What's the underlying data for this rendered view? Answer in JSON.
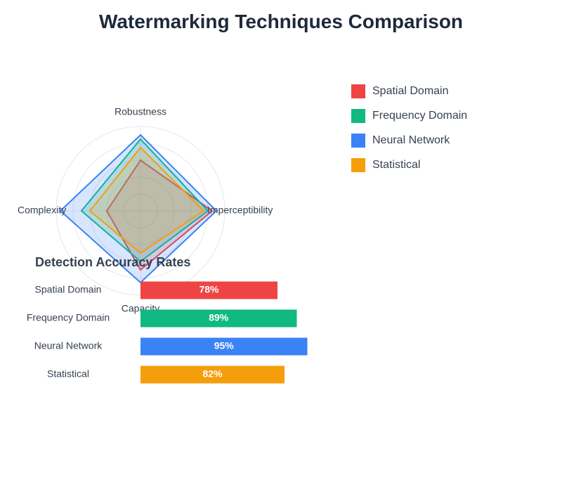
{
  "title": "Watermarking Techniques Comparison",
  "colors": {
    "Spatial Domain": "#ef4444",
    "Frequency Domain": "#10b981",
    "Neural Network": "#3b82f6",
    "Statistical": "#f59e0b"
  },
  "chart_data": [
    {
      "type": "radar",
      "axes": [
        "Robustness",
        "Imperceptibility",
        "Capacity",
        "Complexity"
      ],
      "max": 100,
      "grid": true,
      "legend_position": "right",
      "series": [
        {
          "name": "Spatial Domain",
          "values": [
            60,
            85,
            70,
            40
          ]
        },
        {
          "name": "Frequency Domain",
          "values": [
            85,
            80,
            60,
            70
          ]
        },
        {
          "name": "Neural Network",
          "values": [
            90,
            90,
            85,
            95
          ]
        },
        {
          "name": "Statistical",
          "values": [
            75,
            75,
            50,
            60
          ]
        }
      ]
    },
    {
      "type": "bar",
      "orientation": "horizontal",
      "title": "Detection Accuracy Rates",
      "categories": [
        "Spatial Domain",
        "Frequency Domain",
        "Neural Network",
        "Statistical"
      ],
      "values": [
        78,
        89,
        95,
        82
      ],
      "value_labels": [
        "78%",
        "89%",
        "95%",
        "82%"
      ],
      "xlim": [
        0,
        100
      ]
    }
  ]
}
